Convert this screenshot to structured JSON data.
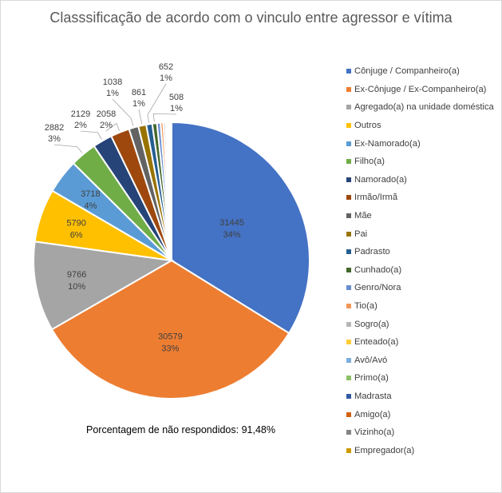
{
  "chart_data": {
    "type": "pie",
    "title": "Classsificação de acordo com o vinculo entre agressor e vítima",
    "legend_position": "right",
    "slices": [
      {
        "label": "Cônjuge / Companheiro(a)",
        "value": 31445,
        "pct": "34%",
        "color": "#4472C4"
      },
      {
        "label": "Ex-Cônjuge / Ex-Companheiro(a)",
        "value": 30579,
        "pct": "33%",
        "color": "#ED7D31"
      },
      {
        "label": "Agregado(a)  na unidade doméstica",
        "value": 9766,
        "pct": "10%",
        "color": "#A5A5A5"
      },
      {
        "label": "Outros",
        "value": 5790,
        "pct": "6%",
        "color": "#FFC000"
      },
      {
        "label": "Ex-Namorado(a)",
        "value": 3718,
        "pct": "4%",
        "color": "#5B9BD5"
      },
      {
        "label": "Filho(a)",
        "value": 2882,
        "pct": "3%",
        "color": "#70AD47"
      },
      {
        "label": "Namorado(a)",
        "value": 2129,
        "pct": "2%",
        "color": "#264478"
      },
      {
        "label": "Irmão/Irmã",
        "value": 2058,
        "pct": "2%",
        "color": "#9E480E"
      },
      {
        "label": "Mãe",
        "value": 1038,
        "pct": "1%",
        "color": "#636363"
      },
      {
        "label": "Pai",
        "value": 861,
        "pct": "1%",
        "color": "#997300"
      },
      {
        "label": "Padrasto",
        "value": 652,
        "pct": "1%",
        "color": "#255E91"
      },
      {
        "label": "Cunhado(a)",
        "value": 508,
        "pct": "1%",
        "color": "#43682B"
      },
      {
        "label": "Genro/Nora",
        "value": 390,
        "pct": "",
        "color": "#698ED0"
      },
      {
        "label": "Tio(a)",
        "value": 300,
        "pct": "",
        "color": "#F1975A"
      },
      {
        "label": "Sogro(a)",
        "value": 230,
        "pct": "",
        "color": "#B7B7B7"
      },
      {
        "label": "Enteado(a)",
        "value": 180,
        "pct": "",
        "color": "#FFCD33"
      },
      {
        "label": "Avô/Avó",
        "value": 140,
        "pct": "",
        "color": "#7CAFDD"
      },
      {
        "label": "Primo(a)",
        "value": 110,
        "pct": "",
        "color": "#8CC168"
      },
      {
        "label": "Madrasta",
        "value": 80,
        "pct": "",
        "color": "#335AA1"
      },
      {
        "label": "Amigo(a)",
        "value": 60,
        "pct": "",
        "color": "#D26012"
      },
      {
        "label": "Vizinho(a)",
        "value": 50,
        "pct": "",
        "color": "#848484"
      },
      {
        "label": "Empregador(a)",
        "value": 40,
        "pct": "",
        "color": "#CC9A00"
      }
    ]
  },
  "note": "Porcentagem de não respondidos: 91,48%"
}
